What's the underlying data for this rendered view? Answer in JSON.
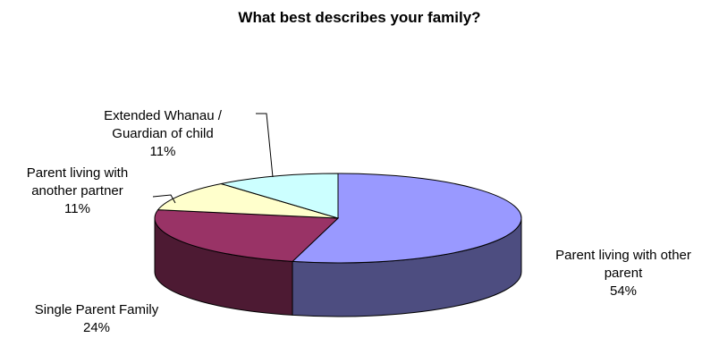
{
  "chart_data": {
    "type": "pie",
    "title": "What best describes your family?",
    "slices": [
      {
        "label_lines": [
          "Parent living with other",
          "parent"
        ],
        "value": 54,
        "value_label": "54%",
        "color": "#9999ff"
      },
      {
        "label_lines": [
          "Single Parent Family"
        ],
        "value": 24,
        "value_label": "24%",
        "color": "#993366"
      },
      {
        "label_lines": [
          "Parent living with",
          "another partner"
        ],
        "value": 11,
        "value_label": "11%",
        "color": "#ffffcc"
      },
      {
        "label_lines": [
          "Extended Whanau /",
          "Guardian of child"
        ],
        "value": 11,
        "value_label": "11%",
        "color": "#ccffff"
      }
    ],
    "legend": "none"
  }
}
